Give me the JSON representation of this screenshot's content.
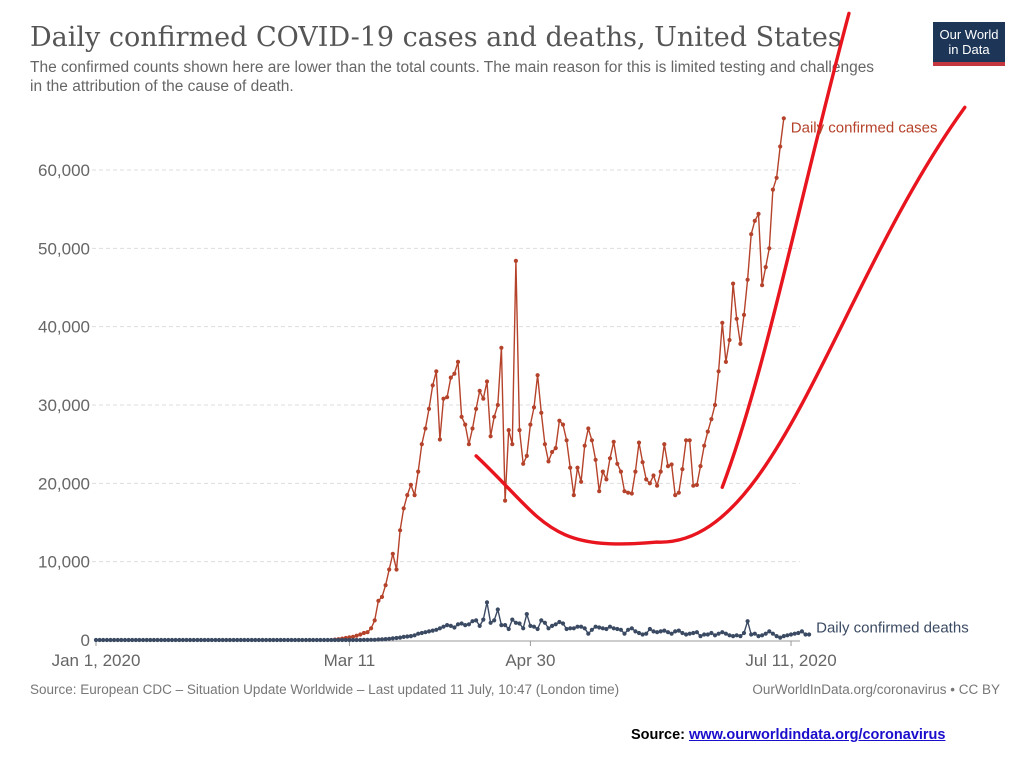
{
  "header": {
    "title": "Daily confirmed COVID-19 cases and deaths, United States",
    "subtitle": "The confirmed counts shown here are lower than the total counts. The main reason for this is limited testing and challenges in the attribution of the cause of death."
  },
  "logo": {
    "line1": "Our World",
    "line2": "in Data",
    "bg": "#1d3557",
    "accent": "#c4373f"
  },
  "footer": {
    "source": "Source: European CDC – Situation Update Worldwide – Last updated 11 July, 10:47 (London time)",
    "license": "OurWorldInData.org/coronavirus • CC BY",
    "bottom_label": "Source: ",
    "bottom_link": "www.ourworldindata.org/coronavirus"
  },
  "colors": {
    "cases": "#b5422a",
    "deaths": "#3b4a63",
    "annotation": "#e8141e",
    "grid": "#dddddd"
  },
  "chart_data": {
    "type": "line",
    "title": "Daily confirmed COVID-19 cases and deaths, United States",
    "xlabel": "",
    "ylabel": "",
    "x_start": "2020-01-01",
    "x_ticks": [
      {
        "label": "Jan 1, 2020",
        "day": 0
      },
      {
        "label": "Mar 11",
        "day": 70
      },
      {
        "label": "Apr 30",
        "day": 120
      },
      {
        "label": "Jul 11, 2020",
        "day": 192
      }
    ],
    "ylim": [
      0,
      62000
    ],
    "y_ticks": [
      0,
      10000,
      20000,
      30000,
      40000,
      50000,
      60000
    ],
    "y_tick_labels": [
      "0",
      "10,000",
      "20,000",
      "30,000",
      "40,000",
      "50,000",
      "60,000"
    ],
    "grid": true,
    "series": [
      {
        "name": "Daily confirmed cases",
        "start_day": 66,
        "values": [
          50,
          100,
          180,
          250,
          350,
          400,
          550,
          700,
          900,
          1000,
          1500,
          2500,
          5000,
          5500,
          7000,
          9000,
          11000,
          9000,
          14000,
          16800,
          18500,
          19800,
          18500,
          21500,
          25000,
          27000,
          29500,
          32500,
          34300,
          25600,
          30800,
          31000,
          33500,
          34000,
          35500,
          28500,
          27500,
          25000,
          27000,
          29500,
          31800,
          30800,
          33000,
          26000,
          28500,
          30000,
          37300,
          17800,
          26800,
          25000,
          48400,
          26800,
          22500,
          23500,
          27500,
          29700,
          33800,
          29000,
          25000,
          22800,
          24000,
          24500,
          28000,
          27500,
          25500,
          22000,
          18500,
          22000,
          20200,
          24800,
          27000,
          25500,
          23000,
          19000,
          21500,
          20500,
          23200,
          25300,
          22500,
          21500,
          19000,
          18800,
          18700,
          21500,
          25200,
          22700,
          20500,
          20000,
          21000,
          19700,
          21500,
          25000,
          22200,
          22400,
          18500,
          18800,
          21800,
          25500,
          25500,
          19700,
          19800,
          22200,
          24800,
          26600,
          28200,
          30000,
          34300,
          40500,
          35500,
          38300,
          45500,
          41000,
          37800,
          41500,
          46000,
          51800,
          53500,
          54400,
          45300,
          47600,
          50000,
          57500,
          59000,
          63000,
          66600
        ]
      },
      {
        "name": "Daily confirmed deaths",
        "start_day": 0,
        "values": [
          0,
          0,
          0,
          0,
          0,
          0,
          0,
          0,
          0,
          0,
          0,
          0,
          0,
          0,
          0,
          0,
          0,
          0,
          0,
          0,
          0,
          0,
          0,
          0,
          0,
          0,
          0,
          0,
          0,
          0,
          0,
          0,
          0,
          0,
          0,
          0,
          0,
          0,
          0,
          0,
          0,
          0,
          0,
          0,
          0,
          0,
          0,
          0,
          0,
          0,
          0,
          0,
          0,
          0,
          0,
          0,
          0,
          0,
          0,
          0,
          0,
          0,
          0,
          0,
          0,
          0,
          0,
          0,
          0,
          0,
          1,
          2,
          3,
          5,
          10,
          15,
          20,
          30,
          60,
          80,
          110,
          150,
          200,
          250,
          300,
          400,
          450,
          500,
          600,
          800,
          900,
          1000,
          1100,
          1200,
          1300,
          1500,
          1700,
          1900,
          1800,
          1600,
          2000,
          2100,
          1900,
          2000,
          2400,
          2500,
          1800,
          2600,
          4800,
          2200,
          2500,
          3900,
          1900,
          1900,
          1400,
          2600,
          2200,
          2100,
          1500,
          3300,
          1800,
          1700,
          1400,
          2500,
          2200,
          1500,
          1800,
          2000,
          2300,
          2100,
          1400,
          1500,
          1500,
          1700,
          1700,
          1500,
          800,
          1300,
          1700,
          1600,
          1500,
          1400,
          1700,
          1500,
          1400,
          1300,
          800,
          1300,
          1500,
          1100,
          900,
          700,
          800,
          1400,
          1100,
          1000,
          1100,
          1200,
          1000,
          800,
          1100,
          1200,
          900,
          700,
          800,
          900,
          1000,
          500,
          700,
          700,
          900,
          600,
          800,
          1000,
          800,
          600,
          500,
          600,
          500,
          900,
          2400,
          700,
          800,
          500,
          600,
          800,
          1100,
          800,
          500,
          300,
          500,
          600,
          700,
          800,
          900,
          1100,
          700,
          700
        ]
      }
    ],
    "annotations": [
      {
        "kind": "trend-line",
        "from": {
          "day": 173,
          "value": 19500
        },
        "to": {
          "day": 208,
          "value": 80000
        }
      },
      {
        "kind": "u-curve",
        "from": {
          "day": 105,
          "value": 23500
        },
        "mid": {
          "day": 155,
          "value": 12500
        },
        "to": {
          "day": 240,
          "value": 68000
        }
      }
    ]
  }
}
